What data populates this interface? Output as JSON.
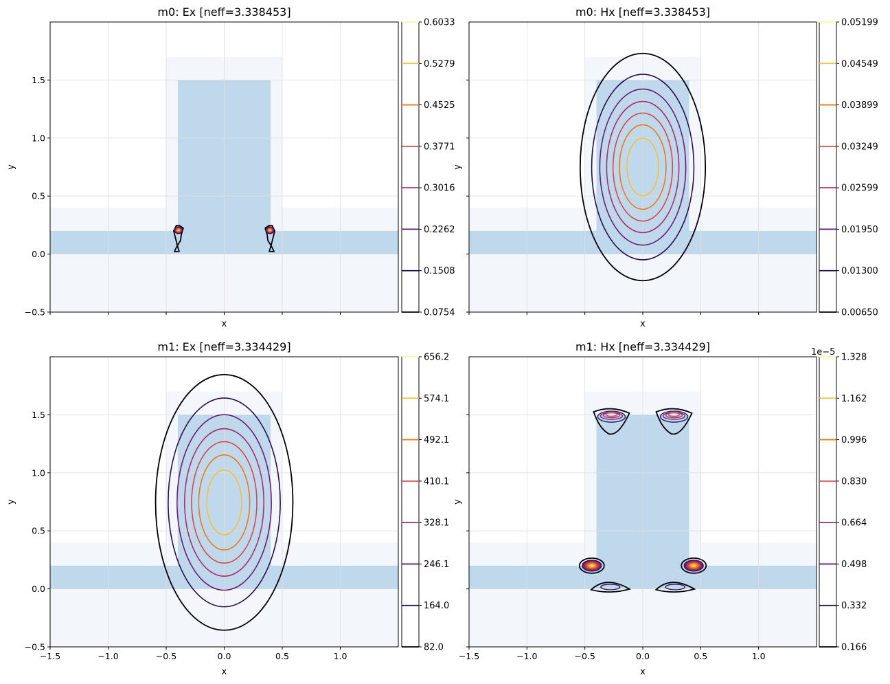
{
  "chart_data": [
    {
      "type": "contour",
      "title": "m0: Ex [neff=3.338453]",
      "xlabel": "x",
      "ylabel": "y",
      "xlim": [
        -1.5,
        1.5
      ],
      "ylim": [
        -0.5,
        2.0
      ],
      "xticks": [],
      "yticks": [
        "−0.5",
        "0.0",
        "0.5",
        "1.0",
        "1.5"
      ],
      "field": {
        "kind": "edge_hotspots",
        "core_rim": false
      },
      "colorbar": {
        "levels": [
          "0.0754",
          "0.1508",
          "0.2262",
          "0.3016",
          "0.3771",
          "0.4525",
          "0.5279",
          "0.6033"
        ],
        "offset_text": ""
      }
    },
    {
      "type": "contour",
      "title": "m0: Hx [neff=3.338453]",
      "xlabel": "x",
      "ylabel": "y",
      "xlim": [
        -1.5,
        1.5
      ],
      "ylim": [
        -0.5,
        2.0
      ],
      "xticks": [],
      "yticks": [],
      "field": {
        "kind": "gaussian",
        "center": [
          0,
          0.75
        ],
        "sx": 0.265,
        "sy": 0.48,
        "n": 8
      },
      "colorbar": {
        "levels": [
          "0.00650",
          "0.01300",
          "0.01950",
          "0.02599",
          "0.03249",
          "0.03899",
          "0.04549",
          "0.05199"
        ],
        "offset_text": ""
      }
    },
    {
      "type": "contour",
      "title": "m1: Ex [neff=3.334429]",
      "xlabel": "x",
      "ylabel": "y",
      "xlim": [
        -1.5,
        1.5
      ],
      "ylim": [
        -0.5,
        2.0
      ],
      "xticks": [
        "−1.5",
        "−1.0",
        "−0.5",
        "0.0",
        "0.5",
        "1.0"
      ],
      "yticks": [
        "−0.5",
        "0.0",
        "0.5",
        "1.0",
        "1.5"
      ],
      "field": {
        "kind": "gaussian",
        "center": [
          0,
          0.745
        ],
        "sx": 0.29,
        "sy": 0.54,
        "n": 8
      },
      "colorbar": {
        "levels": [
          "82.0",
          "164.0",
          "246.1",
          "328.1",
          "410.1",
          "492.1",
          "574.1",
          "656.2"
        ],
        "offset_text": ""
      }
    },
    {
      "type": "contour",
      "title": "m1: Hx [neff=3.334429]",
      "xlabel": "x",
      "ylabel": "y",
      "xlim": [
        -1.5,
        1.5
      ],
      "ylim": [
        -0.5,
        2.0
      ],
      "xticks": [
        "−1.5",
        "−1.0",
        "−0.5",
        "0.0",
        "0.5",
        "1.0"
      ],
      "yticks": [],
      "field": {
        "kind": "corner_hotspots",
        "core_rim": true
      },
      "colorbar": {
        "levels": [
          "0.166",
          "0.332",
          "0.498",
          "0.664",
          "0.830",
          "0.996",
          "1.162",
          "1.328"
        ],
        "offset_text": "1e−5"
      }
    }
  ],
  "geometry_um": {
    "cladding_core": {
      "x": [
        -0.5,
        0.5
      ],
      "y": [
        0.2,
        1.7
      ]
    },
    "cladding_slab": {
      "x": [
        -1.5,
        1.5
      ],
      "y": [
        -0.5,
        0.4
      ]
    },
    "core": {
      "x": [
        -0.4,
        0.4
      ],
      "y": [
        0.0,
        1.5
      ]
    },
    "slab": {
      "x": [
        -1.5,
        1.5
      ],
      "y": [
        0.0,
        0.2
      ]
    }
  },
  "colors": {
    "core_fill": "#c0d8ec",
    "cladding_fill": "#f3f7fb",
    "grid": "#dddddd",
    "levels": [
      "#000004",
      "#2c0b55",
      "#6b1b7a",
      "#a62d71",
      "#d9474a",
      "#ef7a14",
      "#f6c13a",
      "#f4f799"
    ]
  }
}
